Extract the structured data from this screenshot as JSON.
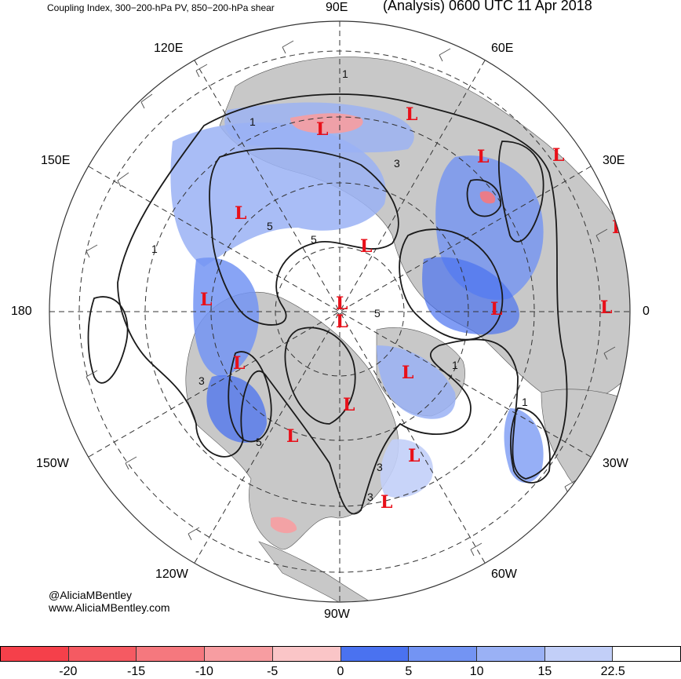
{
  "title": {
    "left": "Coupling Index, 300−200-hPa PV, 850−200-hPa shear",
    "right": "(Analysis) 0600 UTC 11 Apr 2018"
  },
  "longitude_labels": [
    "90E",
    "60E",
    "30E",
    "0",
    "30W",
    "60W",
    "90W",
    "120W",
    "150W",
    "180",
    "150E",
    "120E"
  ],
  "credits": {
    "handle": "@AliciaMBentley",
    "website": "www.AliciaMBentley.com"
  },
  "low_marker": "L",
  "contour_labels": [
    "1",
    "1",
    "3",
    "5",
    "5",
    "5",
    "3",
    "1",
    "1",
    "5",
    "3",
    "3",
    "1"
  ],
  "colorbar": {
    "colors": [
      "#f5404a",
      "#f55a62",
      "#f5787e",
      "#f79da1",
      "#fac5c7",
      "#4a72f0",
      "#7394f3",
      "#9ab1f5",
      "#c2cff8",
      "#ffffff"
    ],
    "tick_labels": [
      "-20",
      "-15",
      "-10",
      "-5",
      "0",
      "5",
      "10",
      "15",
      "22.5"
    ]
  },
  "colors": {
    "land": "#c8c8c8",
    "ocean": "#ffffff",
    "low": "#e8101a",
    "contour": "#1a1a1a",
    "blue_fill": "#6f8ff2",
    "red_fill": "#f5787e"
  }
}
